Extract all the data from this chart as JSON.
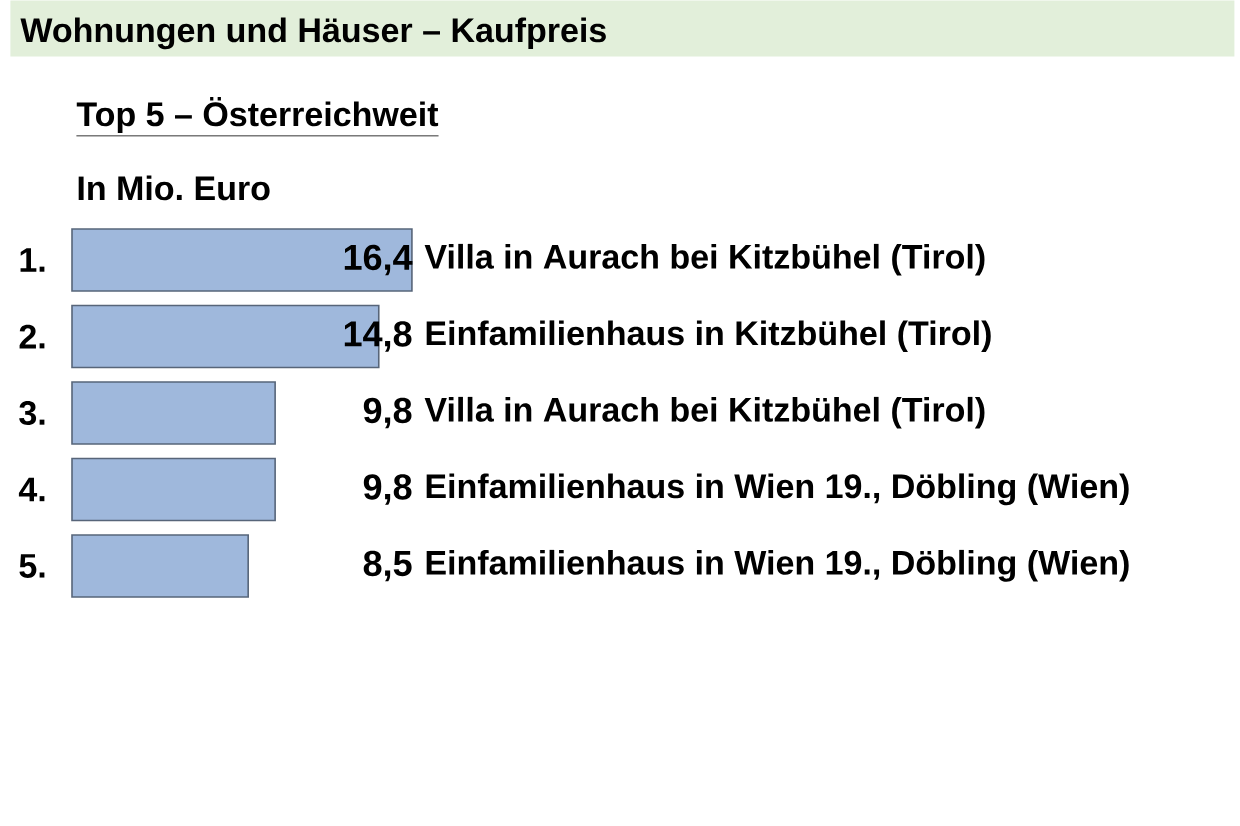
{
  "chart_data": {
    "type": "bar",
    "orientation": "horizontal",
    "title": "Wohnungen und Häuser – Kaufpreis",
    "subtitle": "Top 5 – Österreichweit",
    "xlabel": "In Mio. Euro",
    "categories": [
      "Villa in Aurach bei Kitzbühel (Tirol)",
      "Einfamilienhaus in Kitzbühel (Tirol)",
      "Villa in Aurach bei Kitzbühel (Tirol)",
      "Einfamilienhaus in Wien 19., Döbling (Wien)",
      "Einfamilienhaus in Wien 19., Döbling (Wien)"
    ],
    "values": [
      16.4,
      14.8,
      9.8,
      9.8,
      8.5
    ],
    "value_labels": [
      "16,4",
      "14,8",
      "9,8",
      "9,8",
      "8,5"
    ],
    "color": "#9fb8dc",
    "annotations": [
      "1.",
      "2.",
      "3.",
      "4.",
      "5."
    ],
    "tick_labels": "y"
  }
}
